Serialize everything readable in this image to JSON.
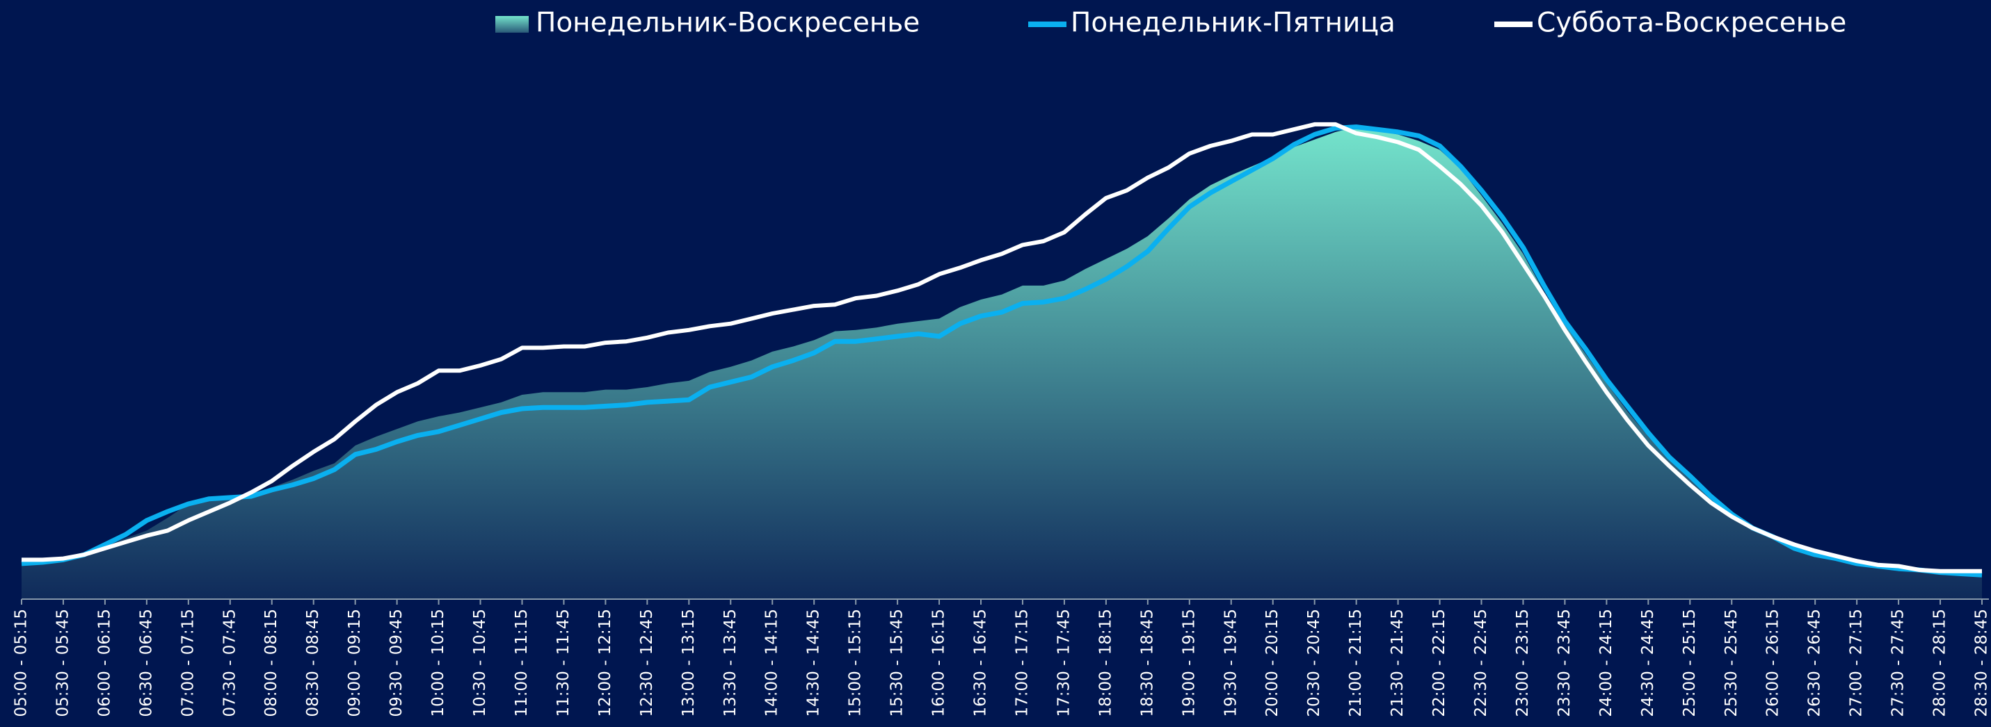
{
  "chart_data": {
    "type": "area-line",
    "legend": "top",
    "grid": false,
    "ylim": [
      0,
      432
    ],
    "categories": [
      "05:00 - 05:15",
      null,
      "05:30 - 05:45",
      null,
      "06:00 - 06:15",
      null,
      "06:30 - 06:45",
      null,
      "07:00 - 07:15",
      null,
      "07:30 - 07:45",
      null,
      "08:00 - 08:15",
      null,
      "08:30 - 08:45",
      null,
      "09:00 - 09:15",
      null,
      "09:30 - 09:45",
      null,
      "10:00 - 10:15",
      null,
      "10:30 - 10:45",
      null,
      "11:00 - 11:15",
      null,
      "11:30 - 11:45",
      null,
      "12:00 - 12:15",
      null,
      "12:30 - 12:45",
      null,
      "13:00 - 13:15",
      null,
      "13:30 - 13:45",
      null,
      "14:00 - 14:15",
      null,
      "14:30 - 14:45",
      null,
      "15:00 - 15:15",
      null,
      "15:30 - 15:45",
      null,
      "16:00 - 16:15",
      null,
      "16:30 - 16:45",
      null,
      "17:00 - 17:15",
      null,
      "17:30 - 17:45",
      null,
      "18:00 - 18:15",
      null,
      "18:30 - 18:45",
      null,
      "19:00 - 19:15",
      null,
      "19:30 - 19:45",
      null,
      "20:00 - 20:15",
      null,
      "20:30 - 20:45",
      null,
      "21:00 - 21:15",
      null,
      "21:30 - 21:45",
      null,
      "22:00 - 22:15",
      null,
      "22:30 - 22:45",
      null,
      "23:00 - 23:15",
      null,
      "23:30 - 23:45",
      null,
      "24:00 - 24:15",
      null,
      "24:30 - 24:45",
      null,
      "25:00 - 25:15",
      null,
      "25:30 - 25:45",
      null,
      "26:00 - 26:15",
      null,
      "26:30 - 26:45",
      null,
      "27:00 - 27:15",
      null,
      "27:30 - 27:45",
      null,
      "28:00 - 28:15",
      null,
      "28:30 - 28:45"
    ],
    "series": [
      {
        "name": "Понедельник-Воскресенье",
        "kind": "area",
        "color": "#74e4cc",
        "values": [
          29,
          29,
          31,
          35,
          42,
          48,
          54,
          64,
          75,
          80,
          81,
          83,
          88,
          94,
          101,
          107,
          121,
          128,
          134,
          140,
          144,
          147,
          151,
          155,
          161,
          163,
          163,
          163,
          165,
          165,
          167,
          170,
          172,
          179,
          183,
          188,
          195,
          199,
          204,
          211,
          212,
          214,
          217,
          219,
          221,
          230,
          236,
          240,
          247,
          247,
          251,
          260,
          268,
          276,
          286,
          300,
          315,
          326,
          334,
          341,
          348,
          356,
          362,
          368,
          372,
          369,
          366,
          361,
          354,
          339,
          318,
          296,
          272,
          242,
          216,
          193,
          170,
          148,
          128,
          110,
          95,
          80,
          67,
          57,
          49,
          42,
          37,
          33,
          29,
          26,
          24,
          22,
          21,
          20,
          19
        ]
      },
      {
        "name": "Понедельник-Пятница",
        "kind": "line",
        "color": "#0ab0f0",
        "values": [
          28,
          29,
          31,
          35,
          43,
          51,
          62,
          69,
          75,
          79,
          80,
          81,
          86,
          90,
          95,
          102,
          114,
          118,
          124,
          129,
          132,
          137,
          142,
          147,
          150,
          151,
          151,
          151,
          152,
          153,
          155,
          156,
          157,
          167,
          171,
          175,
          183,
          188,
          194,
          203,
          203,
          205,
          207,
          209,
          207,
          217,
          223,
          226,
          233,
          234,
          237,
          244,
          252,
          262,
          274,
          292,
          309,
          320,
          329,
          338,
          347,
          358,
          366,
          371,
          372,
          370,
          368,
          365,
          357,
          341,
          322,
          301,
          277,
          247,
          219,
          197,
          173,
          152,
          131,
          112,
          97,
          81,
          67,
          56,
          49,
          40,
          35,
          32,
          28,
          26,
          24,
          23,
          21,
          20,
          19
        ]
      },
      {
        "name": "Суббота-Воскресенье",
        "kind": "line",
        "color": "#ffffff",
        "values": [
          31,
          31,
          32,
          35,
          40,
          45,
          50,
          54,
          62,
          69,
          76,
          84,
          93,
          105,
          116,
          126,
          140,
          153,
          163,
          170,
          180,
          180,
          184,
          189,
          198,
          198,
          199,
          199,
          202,
          203,
          206,
          210,
          212,
          215,
          217,
          221,
          225,
          228,
          231,
          232,
          237,
          239,
          243,
          248,
          256,
          261,
          267,
          272,
          279,
          282,
          289,
          303,
          316,
          322,
          332,
          340,
          351,
          357,
          361,
          366,
          366,
          370,
          374,
          374,
          367,
          364,
          360,
          354,
          341,
          327,
          310,
          289,
          264,
          239,
          212,
          187,
          163,
          141,
          121,
          105,
          90,
          76,
          65,
          56,
          49,
          43,
          38,
          34,
          30,
          27,
          26,
          23,
          22,
          22,
          22
        ]
      }
    ]
  }
}
